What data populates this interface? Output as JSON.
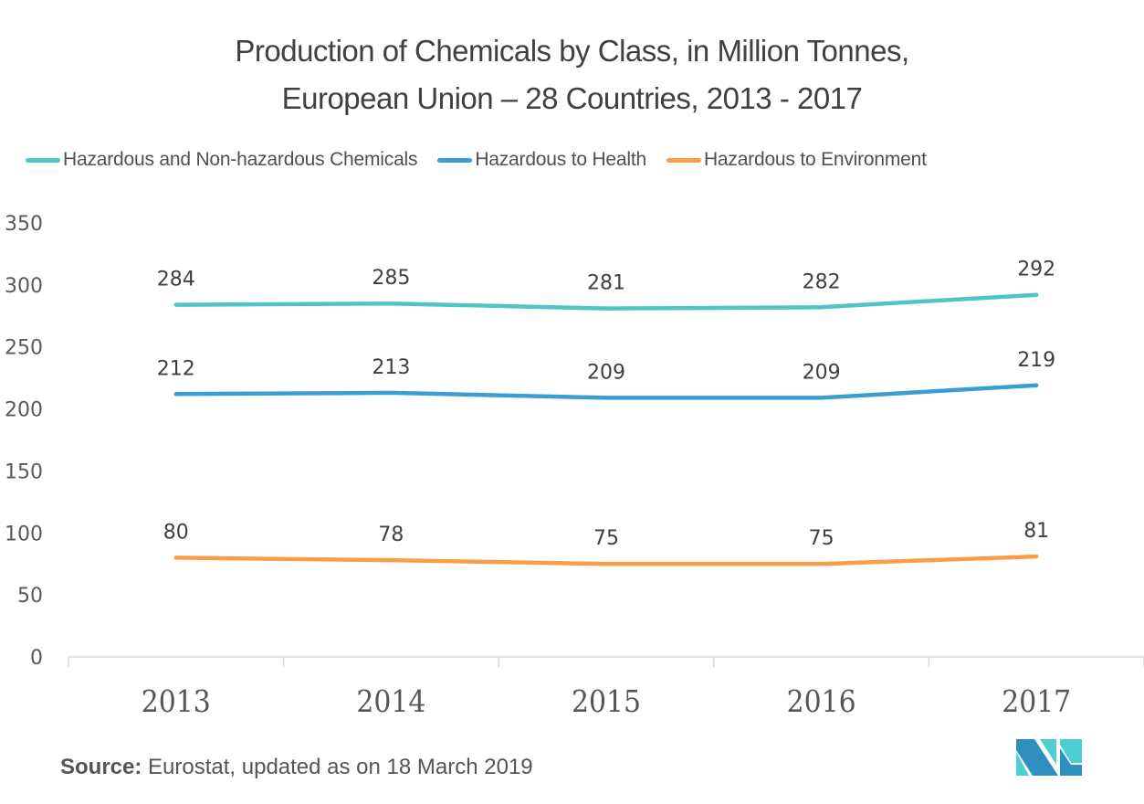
{
  "chart_data": {
    "type": "line",
    "title": "Production of Chemicals by Class, in Million Tonnes,",
    "subtitle": "European Union – 28 Countries, 2013 - 2017",
    "xlabel": "",
    "ylabel": "",
    "categories": [
      "2013",
      "2014",
      "2015",
      "2016",
      "2017"
    ],
    "ylim": [
      0,
      350
    ],
    "yticks": [
      0,
      50,
      100,
      150,
      200,
      250,
      300,
      350
    ],
    "grid": false,
    "legend_position": "top",
    "series": [
      {
        "name": "Hazardous and Non-hazardous Chemicals",
        "color": "#4FC5C7",
        "values": [
          284,
          285,
          281,
          282,
          292
        ]
      },
      {
        "name": "Hazardous to Health",
        "color": "#3C9ED0",
        "values": [
          212,
          213,
          209,
          209,
          219
        ]
      },
      {
        "name": "Hazardous to Environment",
        "color": "#FA9D45",
        "values": [
          80,
          78,
          75,
          75,
          81
        ]
      }
    ],
    "data_labels": true
  },
  "footer": {
    "source_label": "Source:",
    "source_text": " Eurostat, updated as on 18 March 2019"
  },
  "logo": {
    "name": "mordor-intelligence-logo",
    "colors": {
      "dark": "#2E8FC0",
      "light": "#4CCED2"
    }
  }
}
